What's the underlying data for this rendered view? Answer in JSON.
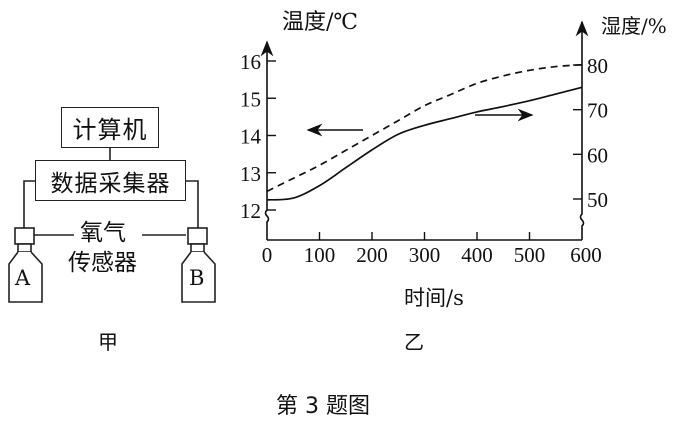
{
  "figure_caption": "第 3 题图",
  "panel_a": {
    "label": "甲",
    "computer": "计算机",
    "data_collector": "数据采集器",
    "sensor_line1": "氧气",
    "sensor_line2": "传感器",
    "bottle_a": "A",
    "bottle_b": "B"
  },
  "panel_b": {
    "label": "乙",
    "left_axis_title": "温度/℃",
    "right_axis_title": "湿度/%",
    "x_axis_title": "时间/s"
  },
  "chart_data": {
    "type": "line",
    "title": "",
    "xlabel": "时间/s",
    "ylabel": "温度/℃",
    "y2label": "湿度/%",
    "x_ticks": [
      "0",
      "100",
      "200",
      "300",
      "400",
      "500",
      "600"
    ],
    "y_ticks_left": [
      "12",
      "13",
      "14",
      "15",
      "16"
    ],
    "y_ticks_right": [
      "50",
      "60",
      "70",
      "80"
    ],
    "xlim": [
      0,
      600
    ],
    "ylim_left": [
      11.2,
      16.5
    ],
    "ylim_right": [
      43,
      82
    ],
    "grid": false,
    "legend": "none (arrows indicate axis)",
    "annotations": [
      "arrow pointing left on dashed curve → temperature (left axis)",
      "arrow pointing right on solid curve → humidity (right axis)"
    ],
    "x": [
      0,
      50,
      100,
      150,
      200,
      250,
      300,
      350,
      400,
      450,
      500,
      550,
      600
    ],
    "series": [
      {
        "name": "温度 (dashed, left axis)",
        "axis": "left",
        "style": "dashed",
        "values": [
          12.5,
          12.85,
          13.2,
          13.6,
          14.0,
          14.4,
          14.8,
          15.1,
          15.4,
          15.6,
          15.75,
          15.85,
          15.9
        ]
      },
      {
        "name": "湿度 (solid, right axis)",
        "axis": "right",
        "style": "solid",
        "values": [
          49.8,
          50.2,
          53,
          57,
          61,
          64.5,
          66.5,
          68,
          69.5,
          70.7,
          72,
          73.5,
          75
        ]
      }
    ]
  }
}
